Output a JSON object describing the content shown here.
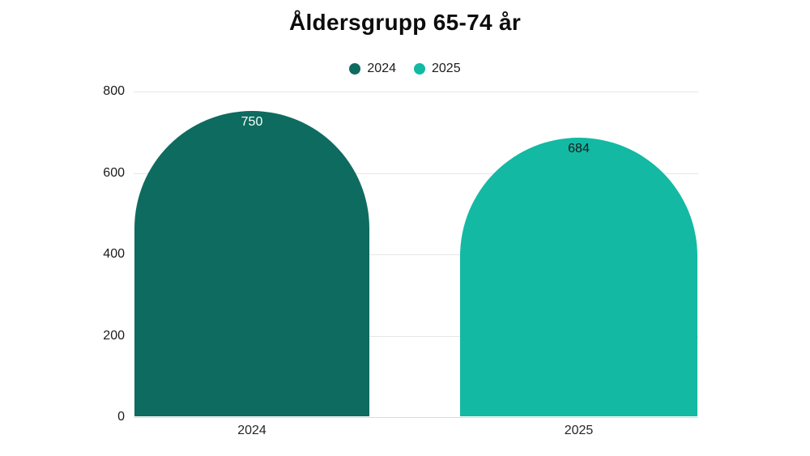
{
  "title": "Åldersgrupp 65-74 år",
  "legend": {
    "items": [
      {
        "label": "2024",
        "color": "#0e6b5f"
      },
      {
        "label": "2025",
        "color": "#13b9a3"
      }
    ]
  },
  "chart_data": {
    "type": "bar",
    "title": "Åldersgrupp 65-74 år",
    "categories": [
      "2024",
      "2025"
    ],
    "values": [
      750,
      684
    ],
    "value_labels": [
      "750",
      "684"
    ],
    "bar_colors": [
      "#0e6b5f",
      "#13b9a3"
    ],
    "value_label_colors": [
      "#ffffff",
      "#1a1a1a"
    ],
    "y_ticks": [
      0,
      200,
      400,
      600,
      800
    ],
    "ylim": [
      0,
      800
    ],
    "xlabel": "",
    "ylabel": "",
    "grid": true,
    "legend_position": "top-center",
    "bar_style": "semicircle-dome-top",
    "background_color": "#ffffff",
    "gridline_color": "#e7e7e7"
  }
}
